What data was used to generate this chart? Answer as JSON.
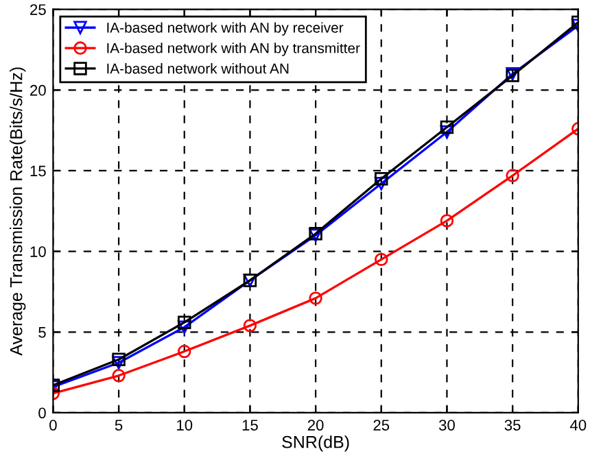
{
  "chart_data": {
    "type": "line",
    "xlabel": "SNR(dB)",
    "ylabel": "Average Transmission Rate(Bits/s/Hz)",
    "x": [
      0,
      5,
      10,
      15,
      20,
      25,
      30,
      35,
      40
    ],
    "series": [
      {
        "name": "IA-based network with AN by receiver",
        "color": "#0000ff",
        "marker": "triangle",
        "values": [
          1.6,
          3.1,
          5.3,
          8.2,
          11.0,
          14.2,
          17.4,
          21.0,
          24.0
        ]
      },
      {
        "name": "IA-based network with AN by transmitter",
        "color": "#ff0000",
        "marker": "circle",
        "values": [
          1.2,
          2.3,
          3.8,
          5.4,
          7.1,
          9.5,
          11.9,
          14.7,
          17.6
        ]
      },
      {
        "name": "IA-based network without AN",
        "color": "#000000",
        "marker": "square",
        "values": [
          1.7,
          3.3,
          5.6,
          8.2,
          11.1,
          14.5,
          17.7,
          20.9,
          24.2
        ]
      }
    ],
    "xlim": [
      0,
      40
    ],
    "xticks": [
      0,
      5,
      10,
      15,
      20,
      25,
      30,
      35,
      40
    ],
    "ylim": [
      0,
      25
    ],
    "yticks": [
      0,
      5,
      10,
      15,
      20,
      25
    ],
    "grid": true,
    "legend": "top left",
    "line_style": "solid"
  }
}
